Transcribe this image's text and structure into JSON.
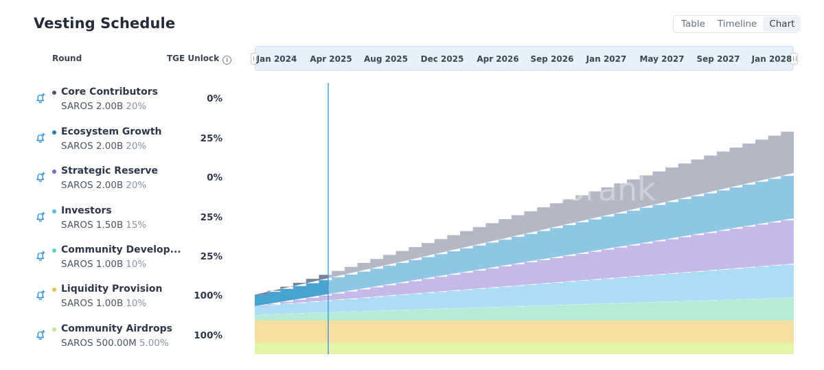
{
  "header": {
    "title": "Vesting Schedule"
  },
  "view_toggle": {
    "options": [
      "Table",
      "Timeline",
      "Chart"
    ],
    "selected": "Chart"
  },
  "columns": {
    "round": "Round",
    "tge": "TGE Unlock"
  },
  "rounds": [
    {
      "name": "Core Contributors",
      "amount": "SAROS 2.00B",
      "share": "20%",
      "tge": "0%",
      "color": "#4a5468"
    },
    {
      "name": "Ecosystem Growth",
      "amount": "SAROS 2.00B",
      "share": "20%",
      "tge": "25%",
      "color": "#1d7fbf"
    },
    {
      "name": "Strategic Reserve",
      "amount": "SAROS 2.00B",
      "share": "20%",
      "tge": "0%",
      "color": "#7b63c9"
    },
    {
      "name": "Investors",
      "amount": "SAROS 1.50B",
      "share": "15%",
      "tge": "25%",
      "color": "#5fb6ee"
    },
    {
      "name": "Community Develop...",
      "amount": "SAROS 1.00B",
      "share": "10%",
      "tge": "25%",
      "color": "#5fd3b0"
    },
    {
      "name": "Liquidity Provision",
      "amount": "SAROS 1.00B",
      "share": "10%",
      "tge": "100%",
      "color": "#e0c157"
    },
    {
      "name": "Community Airdrops",
      "amount": "SAROS 500.00M",
      "share": "5.00%",
      "tge": "100%",
      "color": "#c6e88f"
    }
  ],
  "timeline": {
    "labels": [
      "Jan 2024",
      "Apr 2025",
      "Aug 2025",
      "Dec 2025",
      "Apr 2026",
      "Sep 2026",
      "Jan 2027",
      "May 2027",
      "Sep 2027",
      "Jan 2028"
    ]
  },
  "watermark": "cryptorank",
  "icons": {
    "alert": "bell-plus-icon",
    "info": "info-icon"
  },
  "chart_data": {
    "type": "area",
    "stacked": true,
    "x_start": "Jan 2024",
    "x_end": "Jan 2028",
    "current_date_marker": "Apr 2025",
    "series": [
      {
        "name": "Community Airdrops",
        "color": "#e4f4a8",
        "values": [
          500,
          500
        ]
      },
      {
        "name": "Liquidity Provision",
        "color": "#f5dfa0",
        "values": [
          1000,
          1000
        ]
      },
      {
        "name": "Community Develop...",
        "color": "#b6ecd6",
        "values": [
          250,
          1000
        ]
      },
      {
        "name": "Investors",
        "color": "#acdcf6",
        "values": [
          375,
          1500
        ]
      },
      {
        "name": "Strategic Reserve",
        "color": "#c5b9ea",
        "values": [
          0,
          2000
        ]
      },
      {
        "name": "Ecosystem Growth",
        "color": "#8ec6e3",
        "values": [
          500,
          2000
        ]
      },
      {
        "name": "Core Contributors",
        "color": "#b4b7c6",
        "values": [
          0,
          2000
        ]
      }
    ]
  }
}
